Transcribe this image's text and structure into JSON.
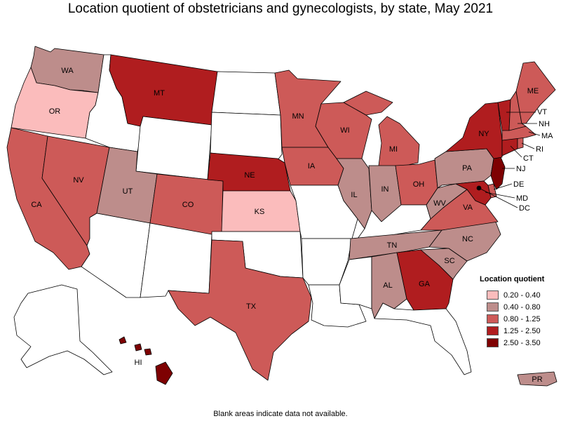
{
  "title": "Location quotient of obstetricians and gynecologists, by state, May 2021",
  "footnote": "Blank areas indicate data not available.",
  "legend": {
    "title": "Location quotient",
    "items": [
      {
        "label": "0.20 - 0.40",
        "color": "#fbbcbc"
      },
      {
        "label": "0.40 - 0.80",
        "color": "#bd8d8b"
      },
      {
        "label": "0.80 - 1.25",
        "color": "#cd5a58"
      },
      {
        "label": "1.25 - 2.50",
        "color": "#b01d1f"
      },
      {
        "label": "2.50 - 3.50",
        "color": "#7e0102"
      }
    ]
  },
  "no_data_color": "#ffffff",
  "states": {
    "WA": {
      "label": "WA",
      "bin": "0.40 - 0.80"
    },
    "OR": {
      "label": "OR",
      "bin": "0.20 - 0.40"
    },
    "CA": {
      "label": "CA",
      "bin": "0.80 - 1.25"
    },
    "NV": {
      "label": "NV",
      "bin": "0.80 - 1.25"
    },
    "UT": {
      "label": "UT",
      "bin": "0.40 - 0.80"
    },
    "MT": {
      "label": "MT",
      "bin": "1.25 - 2.50"
    },
    "CO": {
      "label": "CO",
      "bin": "0.80 - 1.25"
    },
    "NE": {
      "label": "NE",
      "bin": "1.25 - 2.50"
    },
    "KS": {
      "label": "KS",
      "bin": "0.20 - 0.40"
    },
    "TX": {
      "label": "TX",
      "bin": "0.80 - 1.25"
    },
    "MN": {
      "label": "MN",
      "bin": "0.80 - 1.25"
    },
    "IA": {
      "label": "IA",
      "bin": "0.80 - 1.25"
    },
    "WI": {
      "label": "WI",
      "bin": "0.80 - 1.25"
    },
    "IL": {
      "label": "IL",
      "bin": "0.40 - 0.80"
    },
    "MI": {
      "label": "MI",
      "bin": "0.80 - 1.25"
    },
    "IN": {
      "label": "IN",
      "bin": "0.40 - 0.80"
    },
    "OH": {
      "label": "OH",
      "bin": "0.80 - 1.25"
    },
    "PA": {
      "label": "PA",
      "bin": "0.40 - 0.80"
    },
    "WV": {
      "label": "WV",
      "bin": "0.40 - 0.80"
    },
    "VA": {
      "label": "VA",
      "bin": "0.80 - 1.25"
    },
    "NC": {
      "label": "NC",
      "bin": "0.40 - 0.80"
    },
    "SC": {
      "label": "SC",
      "bin": "0.40 - 0.80"
    },
    "TN": {
      "label": "TN",
      "bin": "0.40 - 0.80"
    },
    "AL": {
      "label": "AL",
      "bin": "0.40 - 0.80"
    },
    "GA": {
      "label": "GA",
      "bin": "1.25 - 2.50"
    },
    "NY": {
      "label": "NY",
      "bin": "1.25 - 2.50"
    },
    "VT": {
      "label": "VT",
      "bin": "1.25 - 2.50"
    },
    "NH": {
      "label": "NH",
      "bin": "0.80 - 1.25"
    },
    "ME": {
      "label": "ME",
      "bin": "0.80 - 1.25"
    },
    "MA": {
      "label": "MA",
      "bin": "0.80 - 1.25"
    },
    "RI": {
      "label": "RI",
      "bin": "0.80 - 1.25"
    },
    "CT": {
      "label": "CT",
      "bin": "1.25 - 2.50"
    },
    "NJ": {
      "label": "NJ",
      "bin": "2.50 - 3.50"
    },
    "DE": {
      "label": "DE",
      "bin": "0.80 - 1.25"
    },
    "MD": {
      "label": "MD",
      "bin": "1.25 - 2.50"
    },
    "DC": {
      "label": "DC",
      "bin": "0.80 - 1.25"
    },
    "HI": {
      "label": "HI",
      "bin": "2.50 - 3.50"
    },
    "PR": {
      "label": "PR",
      "bin": "0.40 - 0.80"
    },
    "AK": {
      "label": "",
      "bin": null
    },
    "ID": {
      "label": "",
      "bin": null
    },
    "WY": {
      "label": "",
      "bin": null
    },
    "ND": {
      "label": "",
      "bin": null
    },
    "SD": {
      "label": "",
      "bin": null
    },
    "AZ": {
      "label": "",
      "bin": null
    },
    "NM": {
      "label": "",
      "bin": null
    },
    "OK": {
      "label": "",
      "bin": null
    },
    "MO": {
      "label": "",
      "bin": null
    },
    "AR": {
      "label": "",
      "bin": null
    },
    "LA": {
      "label": "",
      "bin": null
    },
    "MS": {
      "label": "",
      "bin": null
    },
    "KY": {
      "label": "",
      "bin": null
    },
    "FL": {
      "label": "",
      "bin": null
    }
  }
}
